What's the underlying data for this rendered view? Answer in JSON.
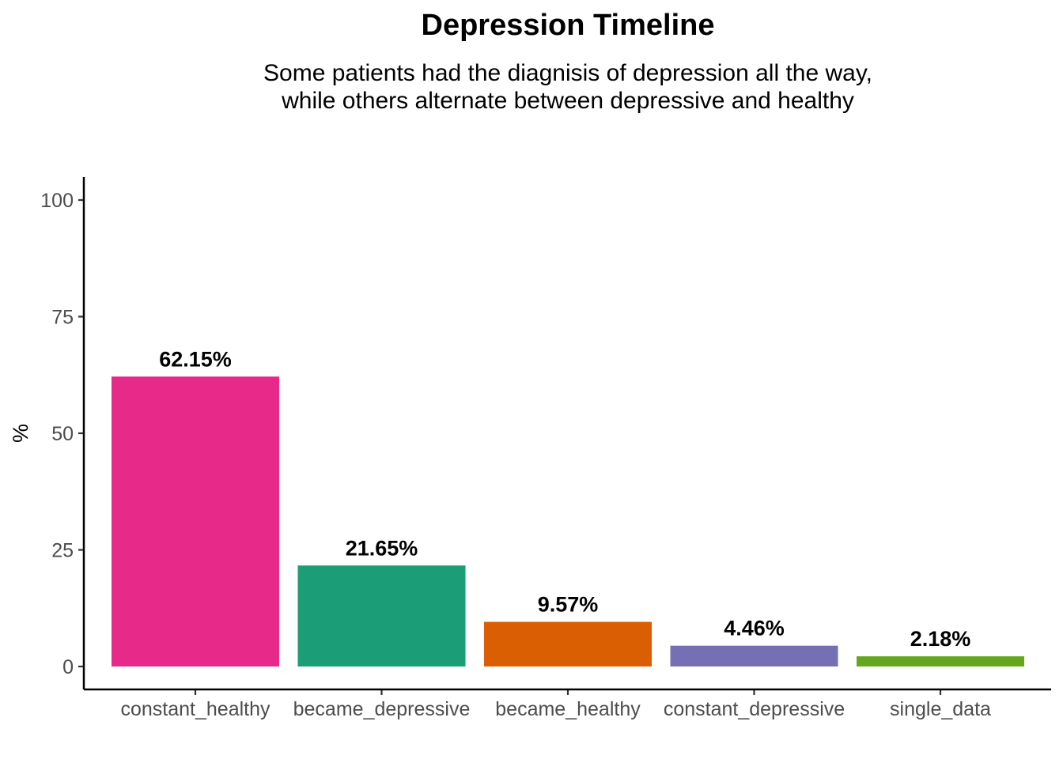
{
  "chart_data": {
    "type": "bar",
    "title": "Depression Timeline",
    "subtitle": [
      "Some patients had the diagnisis of depression all the way,",
      "while others alternate between depressive and healthy"
    ],
    "xlabel": "",
    "ylabel": "%",
    "ylim": [
      0,
      100
    ],
    "yticks": [
      "0",
      "25",
      "50",
      "75",
      "100"
    ],
    "ytick_values": [
      0,
      25,
      50,
      75,
      100
    ],
    "categories": [
      "constant_healthy",
      "became_depressive",
      "became_healthy",
      "constant_depressive",
      "single_data"
    ],
    "values": [
      62.15,
      21.65,
      9.57,
      4.46,
      2.18
    ],
    "labels": [
      "62.15%",
      "21.65%",
      "9.57%",
      "4.46%",
      "2.18%"
    ],
    "colors": [
      "#E7298A",
      "#1B9E77",
      "#D95F02",
      "#7570B3",
      "#66A61E"
    ],
    "grid": false,
    "legend": "none"
  }
}
